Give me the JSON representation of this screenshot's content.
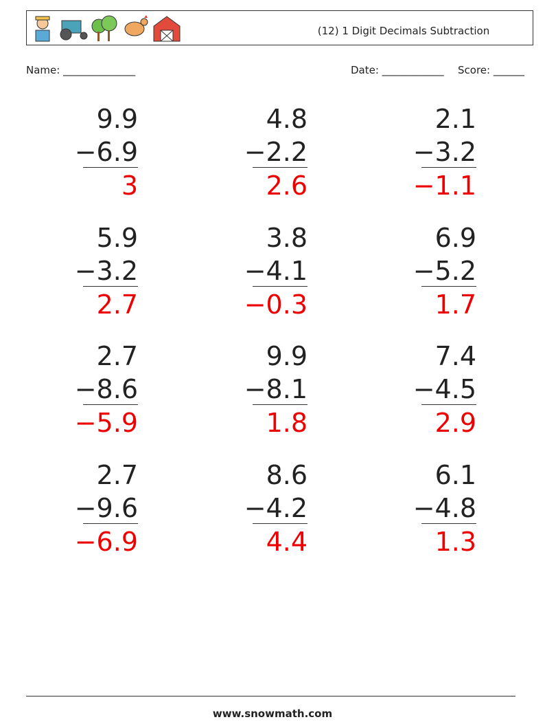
{
  "header": {
    "title": "(12) 1 Digit Decimals Subtraction"
  },
  "fields": {
    "name": "Name: ______________",
    "date": "Date: ____________",
    "score": "Score: ______"
  },
  "problems": [
    {
      "top": "9.9",
      "bottom": "−6.9",
      "answer": "3"
    },
    {
      "top": "4.8",
      "bottom": "−2.2",
      "answer": "2.6"
    },
    {
      "top": "2.1",
      "bottom": "−3.2",
      "answer": "−1.1"
    },
    {
      "top": "5.9",
      "bottom": "−3.2",
      "answer": "2.7"
    },
    {
      "top": "3.8",
      "bottom": "−4.1",
      "answer": "−0.3"
    },
    {
      "top": "6.9",
      "bottom": "−5.2",
      "answer": "1.7"
    },
    {
      "top": "2.7",
      "bottom": "−8.6",
      "answer": "−5.9"
    },
    {
      "top": "9.9",
      "bottom": "−8.1",
      "answer": "1.8"
    },
    {
      "top": "7.4",
      "bottom": "−4.5",
      "answer": "2.9"
    },
    {
      "top": "2.7",
      "bottom": "−9.6",
      "answer": "−6.9"
    },
    {
      "top": "8.6",
      "bottom": "−4.2",
      "answer": "4.4"
    },
    {
      "top": "6.1",
      "bottom": "−4.8",
      "answer": "1.3"
    }
  ],
  "footer": {
    "site": "www.snowmath.com"
  }
}
